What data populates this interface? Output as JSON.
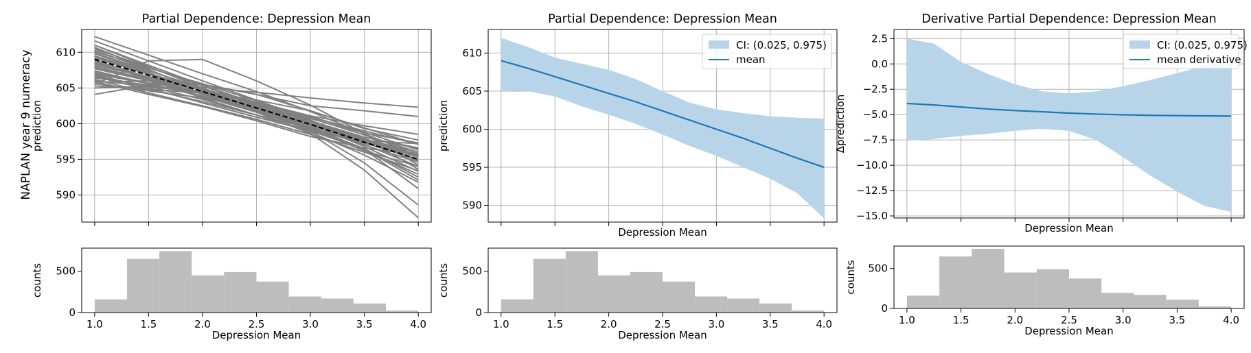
{
  "figure": {
    "ylabel": "NAPLAN year 9 numeracy"
  },
  "colors": {
    "ice": "#808080",
    "mean_dashed": "#000000",
    "ci_fill": "#b7d4e9",
    "mean_line": "#1f77b4",
    "hist": "#bdbdbd",
    "grid": "#b0b0b0"
  },
  "chart_data": [
    {
      "type": "line",
      "panel": "ice",
      "title": "Partial Dependence: Depression Mean",
      "xlabel": "",
      "ylabel": "prediction",
      "xlim": [
        0.88,
        4.12
      ],
      "ylim": [
        586.2,
        613.2
      ],
      "xticks": [
        1.0,
        1.5,
        2.0,
        2.5,
        3.0,
        3.5,
        4.0
      ],
      "xtick_labels": [
        "",
        "",
        "",
        "",
        "",
        "",
        ""
      ],
      "yticks": [
        590,
        595,
        600,
        605,
        610
      ],
      "ytick_labels": [
        "590",
        "595",
        "600",
        "605",
        "610"
      ],
      "grid": true,
      "x": [
        1.0,
        1.5,
        2.0,
        2.5,
        3.0,
        3.5,
        4.0
      ],
      "mean": [
        609.0,
        606.8,
        604.5,
        602.2,
        599.9,
        597.4,
        595.0
      ],
      "ice_curves": [
        [
          612.2,
          609.6,
          607.0,
          604.5,
          601.7,
          598.6,
          595.5
        ],
        [
          611.6,
          608.8,
          606.0,
          603.3,
          600.5,
          597.6,
          594.8
        ],
        [
          611.0,
          608.2,
          605.4,
          602.8,
          600.1,
          597.1,
          594.0
        ],
        [
          610.5,
          607.9,
          605.3,
          602.6,
          599.9,
          596.8,
          593.3
        ],
        [
          610.1,
          607.8,
          605.6,
          603.2,
          600.8,
          598.4,
          596.0
        ],
        [
          609.9,
          607.4,
          605.0,
          602.5,
          600.0,
          597.7,
          595.4
        ],
        [
          609.5,
          607.1,
          604.7,
          602.3,
          600.0,
          597.5,
          594.8
        ],
        [
          609.2,
          606.9,
          604.6,
          602.4,
          600.3,
          597.9,
          595.6
        ],
        [
          608.9,
          606.5,
          604.2,
          601.8,
          599.5,
          597.0,
          594.6
        ],
        [
          608.6,
          606.3,
          604.1,
          601.9,
          599.9,
          597.7,
          595.5
        ],
        [
          608.2,
          606.5,
          604.7,
          602.8,
          600.9,
          599.0,
          597.1
        ],
        [
          608.0,
          606.2,
          604.3,
          602.0,
          599.4,
          596.5,
          592.5
        ],
        [
          607.7,
          606.0,
          604.2,
          602.1,
          600.0,
          598.1,
          596.5
        ],
        [
          607.4,
          605.6,
          603.8,
          601.6,
          599.3,
          596.3,
          592.9
        ],
        [
          607.0,
          605.6,
          603.9,
          601.9,
          599.8,
          597.5,
          595.3
        ],
        [
          606.7,
          605.2,
          603.4,
          601.2,
          598.8,
          595.6,
          591.8
        ],
        [
          606.4,
          605.4,
          604.2,
          602.6,
          600.7,
          598.7,
          597.3
        ],
        [
          606.0,
          605.3,
          604.5,
          603.3,
          601.8,
          599.4,
          597.1
        ],
        [
          605.8,
          606.0,
          605.5,
          604.1,
          602.5,
          601.8,
          601.0
        ],
        [
          605.5,
          608.8,
          609.0,
          606.0,
          602.6,
          598.6,
          594.2
        ],
        [
          605.3,
          604.8,
          604.3,
          603.0,
          601.0,
          598.8,
          596.3
        ],
        [
          606.2,
          604.3,
          602.5,
          600.6,
          598.5,
          596.0,
          593.4
        ],
        [
          607.2,
          605.7,
          605.1,
          604.4,
          603.6,
          602.9,
          602.3
        ],
        [
          609.8,
          607.2,
          604.2,
          601.8,
          599.6,
          596.4,
          590.9
        ],
        [
          611.0,
          608.0,
          605.0,
          602.0,
          599.0,
          594.5,
          588.6
        ],
        [
          610.7,
          607.6,
          604.5,
          601.6,
          598.6,
          593.5,
          586.8
        ],
        [
          605.0,
          605.2,
          604.3,
          602.0,
          599.4,
          597.3,
          595.8
        ],
        [
          604.1,
          605.4,
          605.5,
          604.1,
          601.8,
          599.3,
          597.7
        ],
        [
          605.9,
          604.1,
          602.4,
          600.4,
          598.2,
          596.6,
          595.6
        ],
        [
          606.6,
          604.8,
          603.1,
          601.2,
          599.4,
          597.3,
          595.0
        ],
        [
          608.4,
          606.6,
          604.8,
          603.0,
          601.1,
          599.7,
          598.5
        ],
        [
          609.3,
          607.0,
          604.8,
          602.8,
          600.4,
          598.1,
          596.6
        ],
        [
          607.9,
          606.0,
          603.8,
          601.7,
          599.6,
          597.8,
          596.0
        ],
        [
          610.3,
          607.5,
          604.7,
          602.0,
          599.2,
          596.2,
          594.0
        ],
        [
          606.9,
          605.0,
          602.9,
          600.9,
          599.0,
          597.6,
          597.2
        ],
        [
          608.7,
          606.2,
          603.6,
          601.2,
          599.0,
          596.4,
          592.1
        ],
        [
          605.6,
          604.6,
          603.6,
          602.2,
          600.2,
          598.0,
          593.6
        ]
      ]
    },
    {
      "type": "area",
      "panel": "ci",
      "title": "Partial Dependence: Depression Mean",
      "xlabel": "Depression Mean",
      "ylabel": "prediction",
      "xlim": [
        0.88,
        4.12
      ],
      "ylim": [
        587.8,
        613.1
      ],
      "xticks": [
        1.0,
        1.5,
        2.0,
        2.5,
        3.0,
        3.5,
        4.0
      ],
      "xtick_labels": [
        "",
        "",
        "",
        "",
        "",
        "",
        ""
      ],
      "yticks": [
        590,
        595,
        600,
        605,
        610
      ],
      "ytick_labels": [
        "590",
        "595",
        "600",
        "605",
        "610"
      ],
      "grid": true,
      "x": [
        1.0,
        1.25,
        1.5,
        1.75,
        2.0,
        2.25,
        2.5,
        2.75,
        3.0,
        3.25,
        3.5,
        3.75,
        4.0
      ],
      "mean": [
        609.0,
        608.0,
        606.9,
        605.8,
        604.7,
        603.6,
        602.4,
        601.2,
        600.0,
        598.8,
        597.5,
        596.2,
        595.0
      ],
      "ci_upper": [
        612.0,
        610.8,
        609.4,
        608.6,
        607.8,
        606.6,
        605.0,
        603.5,
        602.6,
        602.1,
        601.7,
        601.5,
        601.4
      ],
      "ci_lower": [
        605.1,
        605.0,
        604.3,
        603.0,
        601.9,
        600.7,
        599.3,
        597.8,
        596.5,
        595.0,
        593.5,
        591.6,
        588.3
      ],
      "legend": {
        "loc": "upper right",
        "entries": [
          "CI: (0.025, 0.975)",
          "mean"
        ]
      }
    },
    {
      "type": "area",
      "panel": "derivative",
      "title": "Derivative Partial Dependence: Depression Mean",
      "xlabel": "Depression Mean",
      "ylabel": "Δprediction",
      "xlim": [
        0.88,
        4.12
      ],
      "ylim": [
        -15.2,
        3.4
      ],
      "xticks": [
        1.0,
        1.5,
        2.0,
        2.5,
        3.0,
        3.5,
        4.0
      ],
      "xtick_labels": [
        "",
        "",
        "",
        "",
        "",
        "",
        ""
      ],
      "yticks": [
        2.5,
        0.0,
        -2.5,
        -5.0,
        -7.5,
        -10.0,
        -12.5,
        -15.0
      ],
      "ytick_labels": [
        "2.5",
        "0.0",
        "−2.5",
        "−5.0",
        "−7.5",
        "−10.0",
        "−12.5",
        "−15.0"
      ],
      "grid": true,
      "x": [
        1.0,
        1.25,
        1.5,
        1.75,
        2.0,
        2.25,
        2.5,
        2.75,
        3.0,
        3.25,
        3.5,
        3.75,
        4.0
      ],
      "mean": [
        -3.9,
        -4.05,
        -4.25,
        -4.45,
        -4.6,
        -4.72,
        -4.85,
        -4.95,
        -5.02,
        -5.07,
        -5.1,
        -5.12,
        -5.15
      ],
      "ci_upper": [
        2.5,
        2.0,
        0.2,
        -1.0,
        -2.0,
        -2.7,
        -2.9,
        -2.7,
        -2.2,
        -1.6,
        -0.9,
        -0.2,
        0.3
      ],
      "ci_lower": [
        -7.6,
        -7.4,
        -7.1,
        -6.9,
        -6.6,
        -6.4,
        -6.6,
        -7.5,
        -9.2,
        -11.0,
        -12.6,
        -14.0,
        -14.6
      ],
      "legend": {
        "loc": "upper right",
        "entries": [
          "CI: (0.025, 0.975)",
          "mean derivative"
        ]
      }
    },
    {
      "type": "bar",
      "panel": "hist",
      "title": "",
      "xlabel": "Depression Mean",
      "ylabel": "counts",
      "xlim": [
        0.88,
        4.12
      ],
      "ylim": [
        0,
        780
      ],
      "xticks": [
        1.0,
        1.5,
        2.0,
        2.5,
        3.0,
        3.5,
        4.0
      ],
      "xtick_labels": [
        "1.0",
        "1.5",
        "2.0",
        "2.5",
        "3.0",
        "3.5",
        "4.0"
      ],
      "yticks": [
        0,
        500
      ],
      "ytick_labels": [
        "0",
        "500"
      ],
      "grid": false,
      "bin_edges": [
        1.0,
        1.3,
        1.6,
        1.9,
        2.2,
        2.5,
        2.8,
        3.1,
        3.4,
        3.7,
        4.0
      ],
      "values": [
        160,
        650,
        745,
        450,
        490,
        375,
        195,
        170,
        110,
        25
      ]
    }
  ]
}
